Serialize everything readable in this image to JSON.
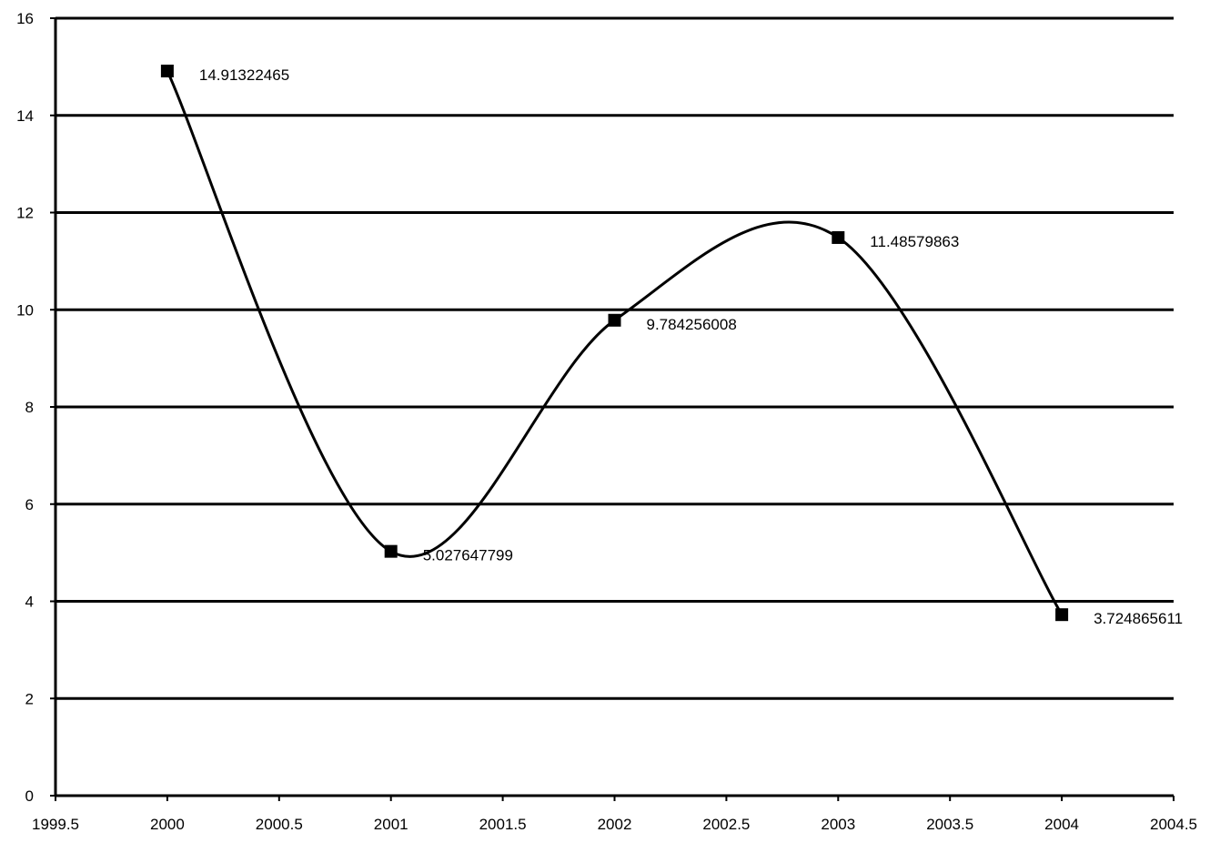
{
  "chart_data": {
    "type": "line",
    "title": "",
    "xlabel": "",
    "ylabel": "",
    "xlim": [
      1999.5,
      2004.5
    ],
    "ylim": [
      0,
      16
    ],
    "x_ticks": [
      "1999.5",
      "2000",
      "2000.5",
      "2001",
      "2001.5",
      "2002",
      "2002.5",
      "2003",
      "2003.5",
      "2004",
      "2004.5"
    ],
    "y_ticks": [
      "0",
      "2",
      "4",
      "6",
      "8",
      "10",
      "12",
      "14",
      "16"
    ],
    "grid": true,
    "smooth": true,
    "series": [
      {
        "x": [
          2000,
          2001,
          2002,
          2003,
          2004
        ],
        "values": [
          14.91322465,
          5.027647799,
          9.784256008,
          11.48579863,
          3.724865611
        ],
        "data_labels": [
          "14.91322465",
          "5.027647799",
          "9.784256008",
          "11.48579863",
          "3.724865611"
        ],
        "marker": "square",
        "color": "#000000"
      }
    ]
  }
}
